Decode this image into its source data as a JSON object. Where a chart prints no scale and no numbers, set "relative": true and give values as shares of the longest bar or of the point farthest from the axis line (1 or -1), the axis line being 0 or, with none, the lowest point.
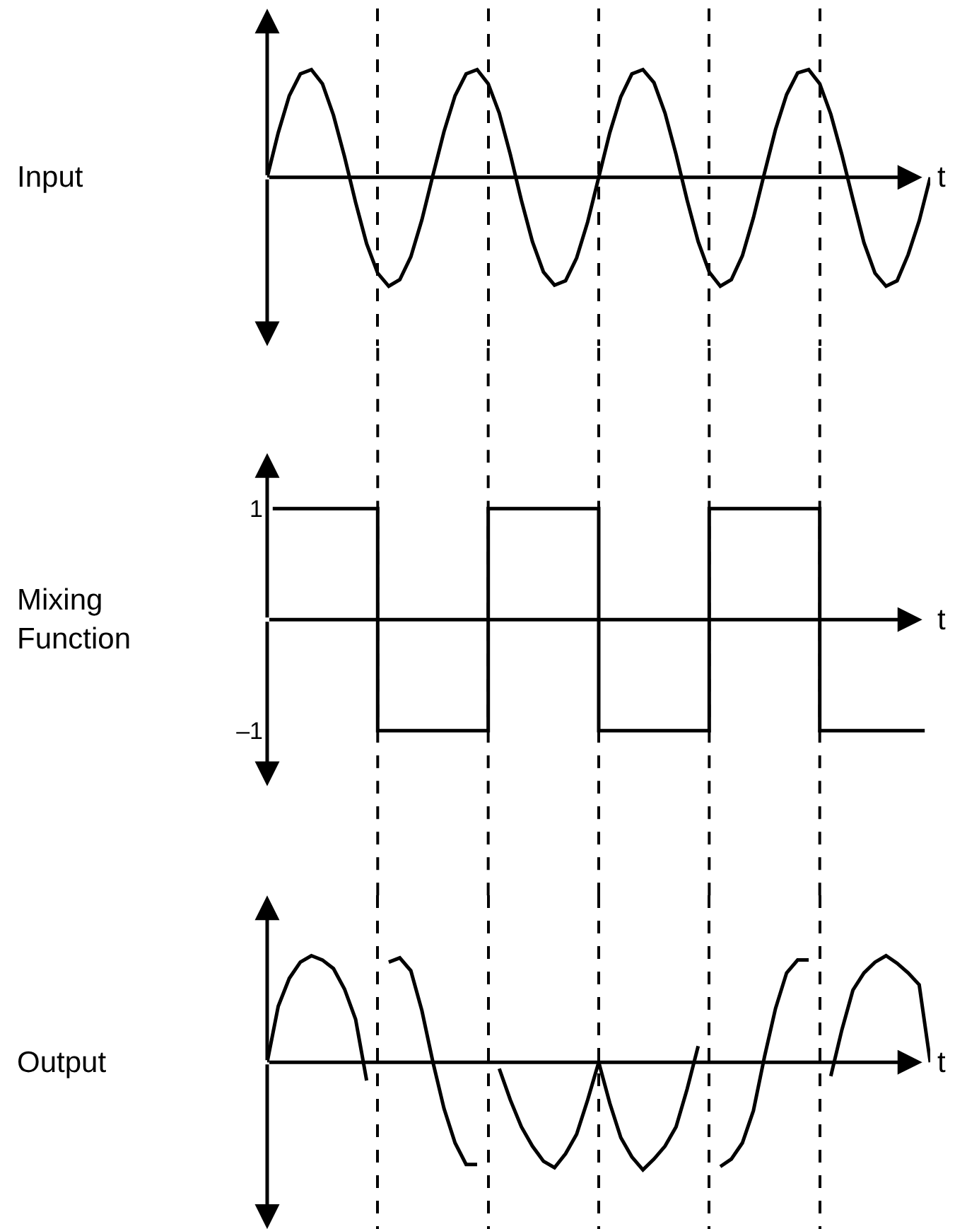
{
  "chart_data": [
    {
      "type": "line",
      "relative": true,
      "ylabel": "Input",
      "xlabel": "t",
      "tick_labels": false,
      "grid": "x",
      "categories": [
        null,
        null,
        null,
        null,
        null,
        null,
        null,
        null,
        null,
        null,
        null,
        null,
        null,
        null,
        null,
        null,
        null,
        null,
        null,
        null,
        null,
        null,
        null,
        null,
        null,
        null,
        null,
        null,
        null,
        null,
        null,
        null,
        null,
        null,
        null,
        null,
        null,
        null,
        null,
        null,
        null,
        null,
        null,
        null,
        null,
        null,
        null,
        null,
        null,
        null,
        null,
        null,
        null,
        null,
        null,
        null,
        null,
        null,
        null,
        null,
        null
      ],
      "series": [
        {
          "color": "#000000",
          "values": [
            0,
            0.41,
            0.75,
            0.95,
            0.99,
            0.86,
            0.57,
            0.19,
            -0.23,
            -0.61,
            -0.88,
            -1.0,
            -0.94,
            -0.73,
            -0.39,
            0.02,
            0.42,
            0.75,
            0.95,
            0.99,
            0.86,
            0.59,
            0.21,
            -0.21,
            -0.59,
            -0.87,
            -0.99,
            -0.95,
            -0.74,
            -0.41,
            0,
            0.41,
            0.74,
            0.95,
            0.99,
            0.87,
            0.59,
            0.21,
            -0.21,
            -0.59,
            -0.87,
            -1.0,
            -0.94,
            -0.72,
            -0.37,
            0.04,
            0.44,
            0.76,
            0.96,
            0.99,
            0.86,
            0.58,
            0.21,
            -0.2,
            -0.6,
            -0.88,
            -1.0,
            -0.95,
            -0.71,
            -0.4,
            0
          ]
        }
      ]
    },
    {
      "type": "step",
      "ylabel": "Mixing\nFunction",
      "xlabel": "t",
      "ylim": [
        -1.5,
        1.5
      ],
      "yticks": [
        1,
        {
          "value": -1,
          "label": "–1"
        }
      ],
      "tick_labels": "y",
      "categories": [
        null,
        null,
        null,
        null,
        null,
        null,
        null,
        null,
        null,
        null,
        null,
        null,
        null,
        null,
        null,
        null,
        null,
        null,
        null,
        null,
        null,
        null,
        null,
        null,
        null,
        null,
        null,
        null,
        null,
        null,
        null,
        null,
        null,
        null,
        null,
        null,
        null,
        null,
        null,
        null,
        null,
        null,
        null,
        null,
        null,
        null,
        null,
        null,
        null,
        null,
        null,
        null,
        null,
        null,
        null,
        null,
        null,
        null,
        null,
        null
      ],
      "series": [
        {
          "color": "#000000",
          "values": [
            1,
            1,
            1,
            1,
            1,
            1,
            1,
            1,
            1,
            1,
            -1,
            -1,
            -1,
            -1,
            -1,
            -1,
            -1,
            -1,
            -1,
            -1,
            1,
            1,
            1,
            1,
            1,
            1,
            1,
            1,
            1,
            1,
            -1,
            -1,
            -1,
            -1,
            -1,
            -1,
            -1,
            -1,
            -1,
            -1,
            1,
            1,
            1,
            1,
            1,
            1,
            1,
            1,
            1,
            1,
            -1,
            -1,
            -1,
            -1,
            -1,
            -1,
            -1,
            -1,
            -1,
            -1
          ]
        }
      ],
      "ref_lines": [
        {
          "axis": "x",
          "line_style": "dashed",
          "color": "#000000"
        },
        {
          "axis": "x",
          "line_style": "dashed",
          "color": "#000000"
        },
        {
          "axis": "x",
          "line_style": "dashed",
          "color": "#000000"
        },
        {
          "axis": "x",
          "line_style": "dashed",
          "color": "#000000"
        },
        {
          "axis": "x",
          "line_style": "dashed",
          "color": "#000000"
        }
      ]
    },
    {
      "type": "line",
      "relative": true,
      "ylabel": "Output",
      "xlabel": "t",
      "tick_labels": false,
      "grid": "x",
      "categories": [
        null,
        null,
        null,
        null,
        null,
        null,
        null,
        null,
        null,
        null,
        null,
        null,
        null,
        null,
        null,
        null,
        null,
        null,
        null,
        null,
        null,
        null,
        null,
        null,
        null,
        null,
        null,
        null,
        null,
        null,
        null,
        null,
        null,
        null,
        null,
        null,
        null,
        null,
        null,
        null,
        null,
        null,
        null,
        null,
        null,
        null,
        null,
        null,
        null,
        null,
        null,
        null,
        null,
        null,
        null,
        null,
        null,
        null,
        null,
        null,
        null
      ],
      "series": [
        {
          "color": "#000000",
          "values": [
            0,
            0.52,
            0.78,
            0.93,
            0.99,
            0.95,
            0.87,
            0.68,
            0.4,
            -0.17,
            null,
            0.93,
            0.97,
            0.85,
            0.48,
            0,
            -0.43,
            -0.75,
            -0.95,
            -0.95,
            null,
            -0.06,
            -0.35,
            -0.6,
            -0.78,
            -0.92,
            -0.98,
            -0.85,
            -0.67,
            -0.35,
            0,
            -0.38,
            -0.7,
            -0.88,
            -1.0,
            -0.9,
            -0.78,
            -0.6,
            -0.25,
            0.15,
            null,
            -0.97,
            -0.9,
            -0.75,
            -0.45,
            0.05,
            0.5,
            0.83,
            0.95,
            0.95,
            null,
            -0.13,
            0.3,
            0.67,
            0.83,
            0.93,
            0.99,
            0.92,
            0.83,
            0.72,
            0
          ]
        }
      ]
    }
  ]
}
